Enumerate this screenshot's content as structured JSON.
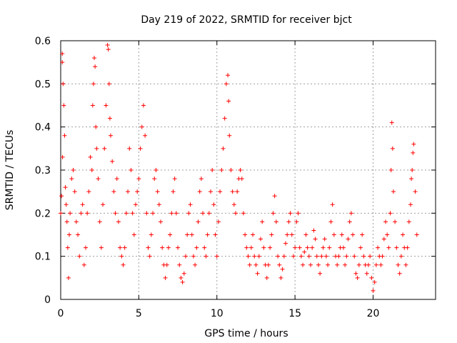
{
  "chart_data": {
    "type": "scatter",
    "title": "Day 219 of 2022, SRMTID for receiver bjct",
    "xlabel": "GPS time / hours",
    "ylabel": "SRMTID / TECUs",
    "xlim": [
      0,
      24
    ],
    "ylim": [
      0,
      0.6
    ],
    "xticks": [
      0,
      5,
      10,
      15,
      20
    ],
    "yticks": [
      0,
      0.1,
      0.2,
      0.3,
      0.4,
      0.5,
      0.6
    ],
    "grid": true,
    "marker": "+",
    "series": [
      {
        "name": "SRMTID",
        "color": "#ff0000",
        "points": [
          [
            0.0,
            0.2
          ],
          [
            0.05,
            0.24
          ],
          [
            0.1,
            0.55
          ],
          [
            0.1,
            0.57
          ],
          [
            0.12,
            0.33
          ],
          [
            0.15,
            0.5
          ],
          [
            0.2,
            0.45
          ],
          [
            0.25,
            0.38
          ],
          [
            0.3,
            0.26
          ],
          [
            0.35,
            0.22
          ],
          [
            0.4,
            0.18
          ],
          [
            0.45,
            0.12
          ],
          [
            0.5,
            0.05
          ],
          [
            0.55,
            0.15
          ],
          [
            0.6,
            0.2
          ],
          [
            0.7,
            0.28
          ],
          [
            0.8,
            0.3
          ],
          [
            0.9,
            0.25
          ],
          [
            1.0,
            0.18
          ],
          [
            1.1,
            0.15
          ],
          [
            1.2,
            0.1
          ],
          [
            1.3,
            0.2
          ],
          [
            1.4,
            0.22
          ],
          [
            1.5,
            0.08
          ],
          [
            1.6,
            0.12
          ],
          [
            1.7,
            0.2
          ],
          [
            1.8,
            0.25
          ],
          [
            1.9,
            0.33
          ],
          [
            2.0,
            0.3
          ],
          [
            2.05,
            0.45
          ],
          [
            2.1,
            0.5
          ],
          [
            2.15,
            0.56
          ],
          [
            2.2,
            0.54
          ],
          [
            2.25,
            0.4
          ],
          [
            2.3,
            0.35
          ],
          [
            2.4,
            0.28
          ],
          [
            2.5,
            0.18
          ],
          [
            2.6,
            0.12
          ],
          [
            2.7,
            0.22
          ],
          [
            2.8,
            0.35
          ],
          [
            2.9,
            0.45
          ],
          [
            3.0,
            0.59
          ],
          [
            3.05,
            0.58
          ],
          [
            3.1,
            0.5
          ],
          [
            3.15,
            0.42
          ],
          [
            3.2,
            0.38
          ],
          [
            3.3,
            0.32
          ],
          [
            3.4,
            0.25
          ],
          [
            3.5,
            0.2
          ],
          [
            3.6,
            0.28
          ],
          [
            3.7,
            0.18
          ],
          [
            3.8,
            0.12
          ],
          [
            3.9,
            0.1
          ],
          [
            4.0,
            0.08
          ],
          [
            4.1,
            0.12
          ],
          [
            4.2,
            0.2
          ],
          [
            4.3,
            0.25
          ],
          [
            4.4,
            0.35
          ],
          [
            4.5,
            0.3
          ],
          [
            4.6,
            0.2
          ],
          [
            4.7,
            0.15
          ],
          [
            4.8,
            0.22
          ],
          [
            4.9,
            0.25
          ],
          [
            5.0,
            0.28
          ],
          [
            5.1,
            0.35
          ],
          [
            5.2,
            0.4
          ],
          [
            5.3,
            0.45
          ],
          [
            5.4,
            0.38
          ],
          [
            5.5,
            0.2
          ],
          [
            5.6,
            0.12
          ],
          [
            5.7,
            0.1
          ],
          [
            5.8,
            0.15
          ],
          [
            5.9,
            0.2
          ],
          [
            6.0,
            0.28
          ],
          [
            6.1,
            0.3
          ],
          [
            6.2,
            0.25
          ],
          [
            6.3,
            0.22
          ],
          [
            6.4,
            0.18
          ],
          [
            6.5,
            0.12
          ],
          [
            6.6,
            0.08
          ],
          [
            6.7,
            0.05
          ],
          [
            6.8,
            0.08
          ],
          [
            6.9,
            0.12
          ],
          [
            7.0,
            0.15
          ],
          [
            7.1,
            0.2
          ],
          [
            7.2,
            0.25
          ],
          [
            7.3,
            0.28
          ],
          [
            7.4,
            0.2
          ],
          [
            7.5,
            0.12
          ],
          [
            7.6,
            0.08
          ],
          [
            7.7,
            0.05
          ],
          [
            7.8,
            0.04
          ],
          [
            7.9,
            0.06
          ],
          [
            8.0,
            0.1
          ],
          [
            8.1,
            0.15
          ],
          [
            8.2,
            0.2
          ],
          [
            8.3,
            0.22
          ],
          [
            8.4,
            0.15
          ],
          [
            8.5,
            0.1
          ],
          [
            8.6,
            0.08
          ],
          [
            8.7,
            0.12
          ],
          [
            8.8,
            0.18
          ],
          [
            8.9,
            0.25
          ],
          [
            9.0,
            0.28
          ],
          [
            9.1,
            0.2
          ],
          [
            9.2,
            0.12
          ],
          [
            9.3,
            0.1
          ],
          [
            9.4,
            0.15
          ],
          [
            9.5,
            0.2
          ],
          [
            9.6,
            0.25
          ],
          [
            9.7,
            0.3
          ],
          [
            9.8,
            0.22
          ],
          [
            9.9,
            0.15
          ],
          [
            10.0,
            0.1
          ],
          [
            10.1,
            0.18
          ],
          [
            10.2,
            0.25
          ],
          [
            10.3,
            0.3
          ],
          [
            10.4,
            0.35
          ],
          [
            10.5,
            0.42
          ],
          [
            10.6,
            0.5
          ],
          [
            10.7,
            0.52
          ],
          [
            10.75,
            0.46
          ],
          [
            10.8,
            0.38
          ],
          [
            10.9,
            0.3
          ],
          [
            11.0,
            0.25
          ],
          [
            11.1,
            0.22
          ],
          [
            11.2,
            0.2
          ],
          [
            11.3,
            0.25
          ],
          [
            11.4,
            0.28
          ],
          [
            11.5,
            0.3
          ],
          [
            11.6,
            0.28
          ],
          [
            11.7,
            0.2
          ],
          [
            11.8,
            0.15
          ],
          [
            11.9,
            0.12
          ],
          [
            12.0,
            0.1
          ],
          [
            12.1,
            0.08
          ],
          [
            12.2,
            0.12
          ],
          [
            12.3,
            0.15
          ],
          [
            12.4,
            0.1
          ],
          [
            12.5,
            0.08
          ],
          [
            12.6,
            0.06
          ],
          [
            12.7,
            0.1
          ],
          [
            12.8,
            0.14
          ],
          [
            12.9,
            0.18
          ],
          [
            13.0,
            0.12
          ],
          [
            13.1,
            0.08
          ],
          [
            13.2,
            0.05
          ],
          [
            13.3,
            0.08
          ],
          [
            13.4,
            0.12
          ],
          [
            13.5,
            0.15
          ],
          [
            13.6,
            0.2
          ],
          [
            13.7,
            0.24
          ],
          [
            13.8,
            0.18
          ],
          [
            13.9,
            0.1
          ],
          [
            14.0,
            0.08
          ],
          [
            14.1,
            0.05
          ],
          [
            14.2,
            0.07
          ],
          [
            14.3,
            0.1
          ],
          [
            14.4,
            0.13
          ],
          [
            14.5,
            0.15
          ],
          [
            14.6,
            0.18
          ],
          [
            14.7,
            0.2
          ],
          [
            14.8,
            0.15
          ],
          [
            14.9,
            0.1
          ],
          [
            15.0,
            0.12
          ],
          [
            15.1,
            0.18
          ],
          [
            15.2,
            0.2
          ],
          [
            15.3,
            0.12
          ],
          [
            15.4,
            0.1
          ],
          [
            15.5,
            0.08
          ],
          [
            15.6,
            0.11
          ],
          [
            15.7,
            0.15
          ],
          [
            15.8,
            0.12
          ],
          [
            15.9,
            0.1
          ],
          [
            16.0,
            0.08
          ],
          [
            16.1,
            0.12
          ],
          [
            16.2,
            0.16
          ],
          [
            16.3,
            0.14
          ],
          [
            16.4,
            0.1
          ],
          [
            16.5,
            0.08
          ],
          [
            16.6,
            0.06
          ],
          [
            16.7,
            0.1
          ],
          [
            16.8,
            0.12
          ],
          [
            16.9,
            0.14
          ],
          [
            17.0,
            0.1
          ],
          [
            17.1,
            0.08
          ],
          [
            17.2,
            0.12
          ],
          [
            17.3,
            0.18
          ],
          [
            17.4,
            0.22
          ],
          [
            17.5,
            0.15
          ],
          [
            17.6,
            0.1
          ],
          [
            17.7,
            0.08
          ],
          [
            17.8,
            0.1
          ],
          [
            17.9,
            0.12
          ],
          [
            18.0,
            0.15
          ],
          [
            18.1,
            0.12
          ],
          [
            18.2,
            0.08
          ],
          [
            18.3,
            0.1
          ],
          [
            18.4,
            0.14
          ],
          [
            18.5,
            0.18
          ],
          [
            18.6,
            0.2
          ],
          [
            18.7,
            0.15
          ],
          [
            18.8,
            0.1
          ],
          [
            18.9,
            0.06
          ],
          [
            19.0,
            0.05
          ],
          [
            19.1,
            0.08
          ],
          [
            19.2,
            0.12
          ],
          [
            19.3,
            0.15
          ],
          [
            19.4,
            0.1
          ],
          [
            19.5,
            0.08
          ],
          [
            19.6,
            0.06
          ],
          [
            19.7,
            0.08
          ],
          [
            19.8,
            0.1
          ],
          [
            19.9,
            0.05
          ],
          [
            20.0,
            0.02
          ],
          [
            20.1,
            0.04
          ],
          [
            20.2,
            0.08
          ],
          [
            20.3,
            0.12
          ],
          [
            20.4,
            0.1
          ],
          [
            20.5,
            0.08
          ],
          [
            20.6,
            0.1
          ],
          [
            20.7,
            0.14
          ],
          [
            20.8,
            0.18
          ],
          [
            20.9,
            0.15
          ],
          [
            21.0,
            0.12
          ],
          [
            21.1,
            0.2
          ],
          [
            21.15,
            0.3
          ],
          [
            21.2,
            0.41
          ],
          [
            21.25,
            0.35
          ],
          [
            21.3,
            0.25
          ],
          [
            21.4,
            0.18
          ],
          [
            21.5,
            0.12
          ],
          [
            21.6,
            0.08
          ],
          [
            21.7,
            0.06
          ],
          [
            21.8,
            0.1
          ],
          [
            21.9,
            0.15
          ],
          [
            22.0,
            0.12
          ],
          [
            22.1,
            0.08
          ],
          [
            22.2,
            0.12
          ],
          [
            22.3,
            0.18
          ],
          [
            22.4,
            0.22
          ],
          [
            22.45,
            0.28
          ],
          [
            22.5,
            0.3
          ],
          [
            22.55,
            0.34
          ],
          [
            22.6,
            0.36
          ],
          [
            22.7,
            0.25
          ],
          [
            22.8,
            0.15
          ]
        ]
      }
    ]
  }
}
